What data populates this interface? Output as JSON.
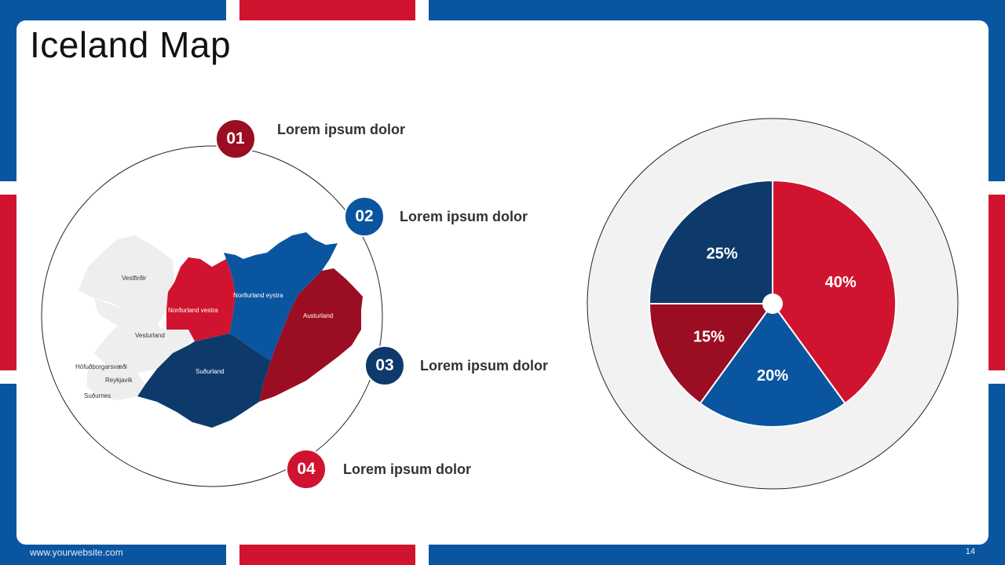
{
  "title": "Iceland Map",
  "footer": {
    "url": "www.yourwebsite.com",
    "page": "14"
  },
  "colors": {
    "red": "#d0142f",
    "dark_red": "#9b0d22",
    "blue": "#0a55a0",
    "navy": "#0d3a6b",
    "gray": "#f2f2f2"
  },
  "items": [
    {
      "num": "01",
      "label": "Lorem ipsum dolor",
      "color": "#9b0d22"
    },
    {
      "num": "02",
      "label": "Lorem ipsum dolor",
      "color": "#0a55a0"
    },
    {
      "num": "03",
      "label": "Lorem ipsum dolor",
      "color": "#0d3a6b"
    },
    {
      "num": "04",
      "label": "Lorem ipsum dolor",
      "color": "#d0142f"
    }
  ],
  "map_regions": [
    "Vestfirðir",
    "Norðurland vestra",
    "Norðurland eystra",
    "Austurland",
    "Vesturland",
    "Suðurland",
    "Höfuðborgarsvæði",
    "Reykjavík",
    "Suðurnes"
  ],
  "chart_data": {
    "type": "pie",
    "categories": [
      "",
      "",
      "",
      ""
    ],
    "values": [
      40,
      20,
      15,
      25
    ],
    "labels": [
      "40%",
      "20%",
      "15%",
      "25%"
    ],
    "colors": [
      "#d0142f",
      "#0a55a0",
      "#9b0d22",
      "#0d3a6b"
    ]
  }
}
